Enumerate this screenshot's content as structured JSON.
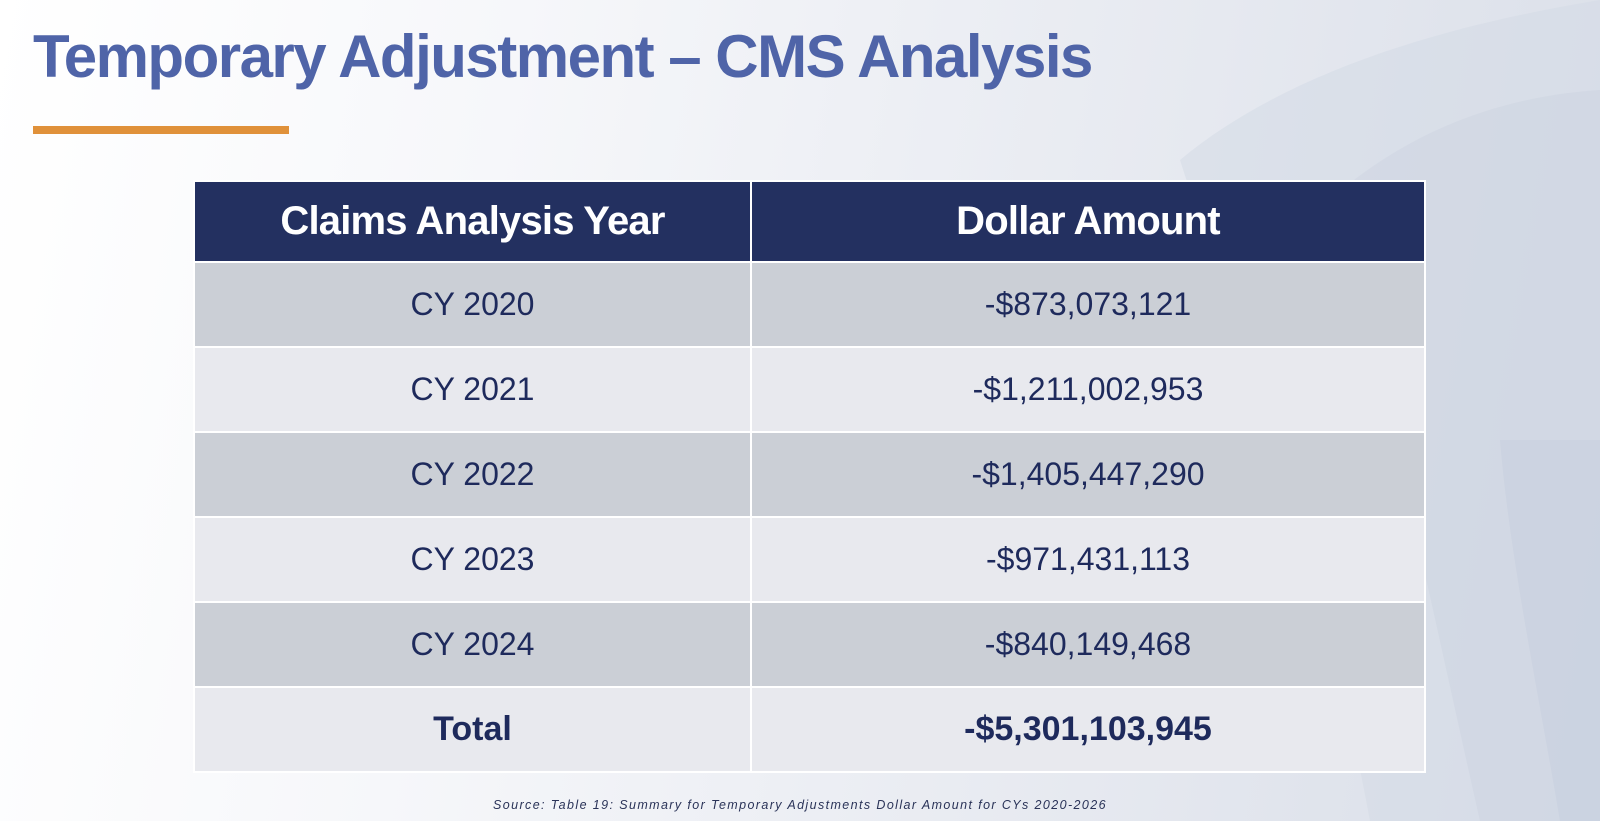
{
  "slide": {
    "title": "Temporary Adjustment – CMS Analysis",
    "source": "Source: Table 19: Summary for Temporary Adjustments Dollar Amount for CYs 2020-2026"
  },
  "table": {
    "headers": [
      "Claims Analysis Year",
      "Dollar Amount"
    ],
    "rows": [
      {
        "year": "CY 2020",
        "amount": "-$873,073,121"
      },
      {
        "year": "CY 2021",
        "amount": "-$1,211,002,953"
      },
      {
        "year": "CY 2022",
        "amount": "-$1,405,447,290"
      },
      {
        "year": "CY 2023",
        "amount": "-$971,431,113"
      },
      {
        "year": "CY 2024",
        "amount": "-$840,149,468"
      }
    ],
    "total": {
      "label": "Total",
      "amount": "-$5,301,103,945"
    }
  },
  "colors": {
    "title": "#4f64a8",
    "underline": "#e0913a",
    "header_bg": "#233060",
    "row_dark": "#cbcfd6",
    "row_light": "#e8e9ee",
    "cell_text": "#1e2a5c"
  }
}
